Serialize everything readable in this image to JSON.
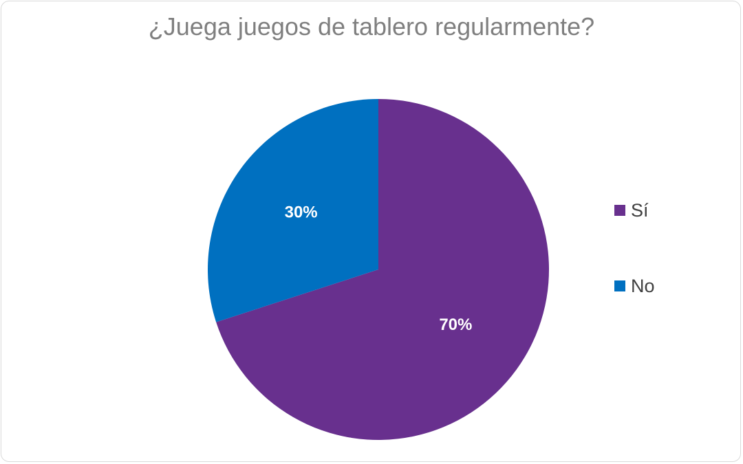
{
  "chart_data": {
    "type": "pie",
    "title": "¿Juega juegos de tablero regularmente?",
    "slices": [
      {
        "name": "Sí",
        "value": 70,
        "label": "70%",
        "color": "#68308e"
      },
      {
        "name": "No",
        "value": 30,
        "label": "30%",
        "color": "#0070c0"
      }
    ],
    "legend_position": "right"
  }
}
